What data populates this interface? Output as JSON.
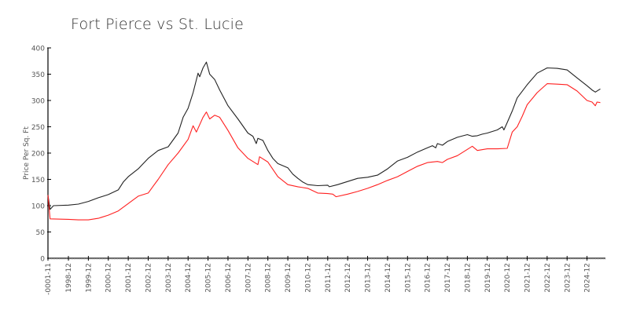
{
  "chart_data": {
    "type": "line",
    "title": "Fort Pierce vs St. Lucie",
    "xlabel": "",
    "ylabel": "Price Per Sq. Ft",
    "ylim": [
      0,
      400
    ],
    "yticks": [
      0,
      50,
      100,
      150,
      200,
      250,
      300,
      350,
      400
    ],
    "xtick_labels": [
      "-0001-11",
      "1998-12",
      "1999-12",
      "2000-12",
      "2001-12",
      "2002-12",
      "2003-12",
      "2004-12",
      "2005-12",
      "2006-12",
      "2007-12",
      "2008-12",
      "2009-12",
      "2010-12",
      "2011-12",
      "2012-12",
      "2013-12",
      "2014-12",
      "2015-12",
      "2016-12",
      "2017-12",
      "2018-12",
      "2019-12",
      "2020-12",
      "2021-12",
      "2022-12",
      "2023-12",
      "2024-12"
    ],
    "grid": false,
    "legend": "none",
    "series": [
      {
        "name": "St. Lucie",
        "color": "#222222",
        "points": [
          [
            "-0001-11",
            120
          ],
          [
            "1998-01",
            93
          ],
          [
            "1998-03",
            100
          ],
          [
            "1998-12",
            101
          ],
          [
            "1999-06",
            103
          ],
          [
            "1999-12",
            108
          ],
          [
            "2000-06",
            115
          ],
          [
            "2000-12",
            121
          ],
          [
            "2001-06",
            130
          ],
          [
            "2001-09",
            145
          ],
          [
            "2001-12",
            155
          ],
          [
            "2002-06",
            170
          ],
          [
            "2002-12",
            190
          ],
          [
            "2003-06",
            205
          ],
          [
            "2003-12",
            212
          ],
          [
            "2004-06",
            238
          ],
          [
            "2004-09",
            268
          ],
          [
            "2004-12",
            285
          ],
          [
            "2005-03",
            315
          ],
          [
            "2005-06",
            352
          ],
          [
            "2005-07",
            345
          ],
          [
            "2005-09",
            362
          ],
          [
            "2005-11",
            373
          ],
          [
            "2006-01",
            350
          ],
          [
            "2006-04",
            340
          ],
          [
            "2006-07",
            320
          ],
          [
            "2006-12",
            290
          ],
          [
            "2007-06",
            265
          ],
          [
            "2007-12",
            238
          ],
          [
            "2008-03",
            232
          ],
          [
            "2008-05",
            218
          ],
          [
            "2008-06",
            228
          ],
          [
            "2008-09",
            224
          ],
          [
            "2008-12",
            205
          ],
          [
            "2009-03",
            190
          ],
          [
            "2009-06",
            180
          ],
          [
            "2009-12",
            172
          ],
          [
            "2010-03",
            160
          ],
          [
            "2010-06",
            152
          ],
          [
            "2010-09",
            145
          ],
          [
            "2010-12",
            140
          ],
          [
            "2011-06",
            138
          ],
          [
            "2011-12",
            139
          ],
          [
            "2012-01",
            136
          ],
          [
            "2012-06",
            140
          ],
          [
            "2012-12",
            146
          ],
          [
            "2013-06",
            152
          ],
          [
            "2013-12",
            154
          ],
          [
            "2014-06",
            158
          ],
          [
            "2014-12",
            170
          ],
          [
            "2015-06",
            185
          ],
          [
            "2015-12",
            192
          ],
          [
            "2016-06",
            202
          ],
          [
            "2016-12",
            210
          ],
          [
            "2017-03",
            214
          ],
          [
            "2017-05",
            210
          ],
          [
            "2017-06",
            218
          ],
          [
            "2017-09",
            215
          ],
          [
            "2017-12",
            222
          ],
          [
            "2018-06",
            230
          ],
          [
            "2018-12",
            235
          ],
          [
            "2019-03",
            232
          ],
          [
            "2019-06",
            233
          ],
          [
            "2019-09",
            236
          ],
          [
            "2019-12",
            238
          ],
          [
            "2020-06",
            244
          ],
          [
            "2020-09",
            250
          ],
          [
            "2020-10",
            244
          ],
          [
            "2020-12",
            258
          ],
          [
            "2021-03",
            280
          ],
          [
            "2021-06",
            305
          ],
          [
            "2021-12",
            330
          ],
          [
            "2022-06",
            352
          ],
          [
            "2022-12",
            362
          ],
          [
            "2023-06",
            361
          ],
          [
            "2023-12",
            358
          ],
          [
            "2024-06",
            343
          ],
          [
            "2024-12",
            328
          ],
          [
            "2025-03",
            320
          ],
          [
            "2025-05",
            316
          ],
          [
            "2025-08",
            322
          ]
        ]
      },
      {
        "name": "Fort Pierce",
        "color": "#ff2020",
        "points": [
          [
            "-0001-11",
            120
          ],
          [
            "1998-01",
            75
          ],
          [
            "1998-12",
            74
          ],
          [
            "1999-06",
            73
          ],
          [
            "1999-12",
            73
          ],
          [
            "2000-06",
            76
          ],
          [
            "2000-12",
            82
          ],
          [
            "2001-06",
            90
          ],
          [
            "2001-12",
            104
          ],
          [
            "2002-06",
            118
          ],
          [
            "2002-12",
            124
          ],
          [
            "2003-03",
            137
          ],
          [
            "2003-06",
            150
          ],
          [
            "2003-12",
            178
          ],
          [
            "2004-06",
            200
          ],
          [
            "2004-12",
            226
          ],
          [
            "2005-03",
            252
          ],
          [
            "2005-05",
            240
          ],
          [
            "2005-09",
            268
          ],
          [
            "2005-11",
            278
          ],
          [
            "2006-01",
            265
          ],
          [
            "2006-04",
            272
          ],
          [
            "2006-07",
            268
          ],
          [
            "2006-12",
            243
          ],
          [
            "2007-06",
            210
          ],
          [
            "2007-12",
            190
          ],
          [
            "2008-06",
            178
          ],
          [
            "2008-07",
            193
          ],
          [
            "2008-12",
            183
          ],
          [
            "2009-06",
            155
          ],
          [
            "2009-12",
            140
          ],
          [
            "2010-06",
            136
          ],
          [
            "2010-12",
            133
          ],
          [
            "2011-06",
            124
          ],
          [
            "2011-12",
            123
          ],
          [
            "2012-03",
            122
          ],
          [
            "2012-05",
            117
          ],
          [
            "2012-12",
            122
          ],
          [
            "2013-06",
            127
          ],
          [
            "2013-12",
            133
          ],
          [
            "2014-06",
            140
          ],
          [
            "2014-12",
            148
          ],
          [
            "2015-06",
            155
          ],
          [
            "2015-12",
            165
          ],
          [
            "2016-06",
            175
          ],
          [
            "2016-12",
            182
          ],
          [
            "2017-06",
            184
          ],
          [
            "2017-09",
            182
          ],
          [
            "2017-12",
            188
          ],
          [
            "2018-06",
            195
          ],
          [
            "2018-12",
            207
          ],
          [
            "2019-03",
            213
          ],
          [
            "2019-06",
            205
          ],
          [
            "2019-12",
            208
          ],
          [
            "2020-06",
            208
          ],
          [
            "2020-12",
            209
          ],
          [
            "2021-03",
            240
          ],
          [
            "2021-06",
            250
          ],
          [
            "2021-09",
            270
          ],
          [
            "2021-12",
            292
          ],
          [
            "2022-06",
            315
          ],
          [
            "2022-12",
            332
          ],
          [
            "2023-06",
            331
          ],
          [
            "2023-12",
            330
          ],
          [
            "2024-06",
            318
          ],
          [
            "2024-12",
            300
          ],
          [
            "2025-03",
            297
          ],
          [
            "2025-05",
            290
          ],
          [
            "2025-06",
            297
          ],
          [
            "2025-08",
            296
          ]
        ]
      }
    ]
  }
}
